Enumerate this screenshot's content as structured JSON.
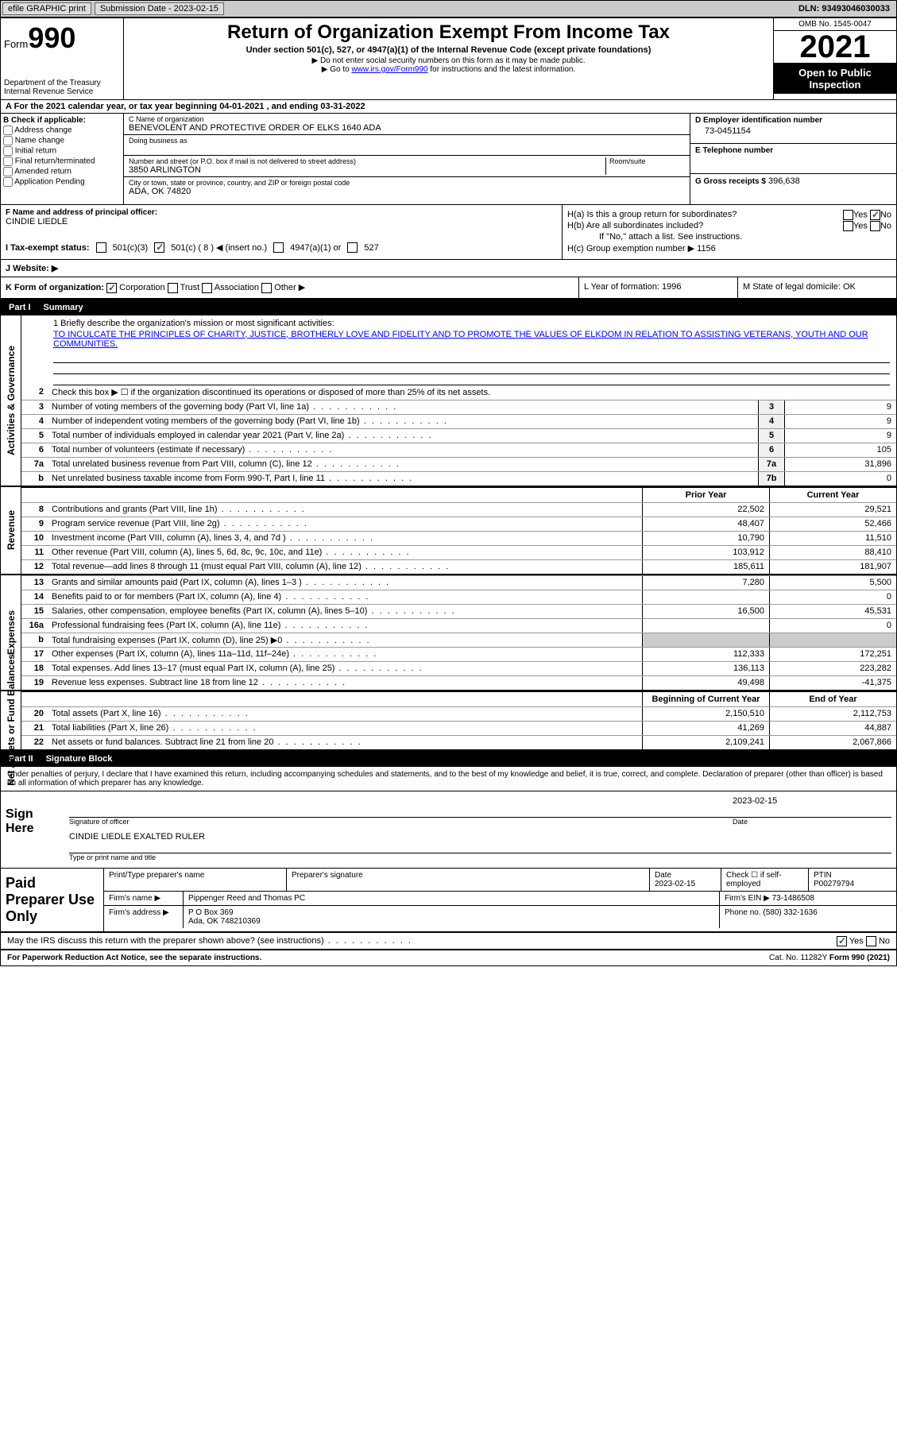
{
  "topbar": {
    "efile": "efile GRAPHIC print",
    "sub_label": "Submission Date - 2023-02-15",
    "dln": "DLN: 93493046030033"
  },
  "header": {
    "form_label": "Form",
    "form_num": "990",
    "dept": "Department of the Treasury Internal Revenue Service",
    "title": "Return of Organization Exempt From Income Tax",
    "subtitle": "Under section 501(c), 527, or 4947(a)(1) of the Internal Revenue Code (except private foundations)",
    "note1": "▶ Do not enter social security numbers on this form as it may be made public.",
    "note2_pre": "▶ Go to ",
    "note2_link": "www.irs.gov/Form990",
    "note2_post": " for instructions and the latest information.",
    "omb": "OMB No. 1545-0047",
    "year": "2021",
    "inspect": "Open to Public Inspection"
  },
  "period": "A For the 2021 calendar year, or tax year beginning 04-01-2021   , and ending 03-31-2022",
  "check_b": {
    "title": "B Check if applicable:",
    "items": [
      "Address change",
      "Name change",
      "Initial return",
      "Final return/terminated",
      "Amended return",
      "Application Pending"
    ]
  },
  "entity": {
    "c_name_lbl": "C Name of organization",
    "c_name": "BENEVOLENT AND PROTECTIVE ORDER OF ELKS 1640 ADA",
    "dba_lbl": "Doing business as",
    "dba": "",
    "street_lbl": "Number and street (or P.O. box if mail is not delivered to street address)",
    "room_lbl": "Room/suite",
    "street": "3850 ARLINGTON",
    "city_lbl": "City or town, state or province, country, and ZIP or foreign postal code",
    "city": "ADA, OK  74820",
    "d_ein_lbl": "D Employer identification number",
    "d_ein": "73-0451154",
    "e_phone_lbl": "E Telephone number",
    "e_phone": "",
    "g_gross_lbl": "G Gross receipts $",
    "g_gross": "396,638"
  },
  "officer": {
    "label": "F  Name and address of principal officer:",
    "name": "CINDIE LIEDLE"
  },
  "h": {
    "a": "H(a)  Is this a group return for subordinates?",
    "b": "H(b)  Are all subordinates included?",
    "note": "If \"No,\" attach a list. See instructions.",
    "c": "H(c)  Group exemption number ▶",
    "c_val": "1156",
    "yes": "Yes",
    "no": "No"
  },
  "tax_status": {
    "label": "I   Tax-exempt status:",
    "o501c3": "501(c)(3)",
    "o501c": "501(c) ( 8 ) ◀ (insert no.)",
    "o4947": "4947(a)(1) or",
    "o527": "527"
  },
  "website": {
    "label": "J   Website: ▶",
    "val": ""
  },
  "korg": {
    "label": "K Form of organization:",
    "corp": "Corporation",
    "trust": "Trust",
    "assoc": "Association",
    "other": "Other ▶",
    "l": "L Year of formation: 1996",
    "m": "M State of legal domicile: OK"
  },
  "part1": {
    "num": "Part I",
    "title": "Summary"
  },
  "mission": {
    "label": "1   Briefly describe the organization's mission or most significant activities:",
    "text": "TO INCULCATE THE PRINCIPLES OF CHARITY, JUSTICE, BROTHERLY LOVE AND FIDELITY AND TO PROMOTE THE VALUES OF ELKDOM IN RELATION TO ASSISTING VETERANS, YOUTH AND OUR COMMUNITIES."
  },
  "line2": "Check this box ▶ ☐  if the organization discontinued its operations or disposed of more than 25% of its net assets.",
  "lines_ag": [
    {
      "n": "3",
      "t": "Number of voting members of the governing body (Part VI, line 1a)",
      "b": "3",
      "v": "9"
    },
    {
      "n": "4",
      "t": "Number of independent voting members of the governing body (Part VI, line 1b)",
      "b": "4",
      "v": "9"
    },
    {
      "n": "5",
      "t": "Total number of individuals employed in calendar year 2021 (Part V, line 2a)",
      "b": "5",
      "v": "9"
    },
    {
      "n": "6",
      "t": "Total number of volunteers (estimate if necessary)",
      "b": "6",
      "v": "105"
    },
    {
      "n": "7a",
      "t": "Total unrelated business revenue from Part VIII, column (C), line 12",
      "b": "7a",
      "v": "31,896"
    },
    {
      "n": "b",
      "t": "Net unrelated business taxable income from Form 990-T, Part I, line 11",
      "b": "7b",
      "v": "0"
    }
  ],
  "col_hdrs": {
    "prior": "Prior Year",
    "current": "Current Year",
    "boy": "Beginning of Current Year",
    "eoy": "End of Year"
  },
  "rev": [
    {
      "n": "8",
      "t": "Contributions and grants (Part VIII, line 1h)",
      "p": "22,502",
      "c": "29,521"
    },
    {
      "n": "9",
      "t": "Program service revenue (Part VIII, line 2g)",
      "p": "48,407",
      "c": "52,466"
    },
    {
      "n": "10",
      "t": "Investment income (Part VIII, column (A), lines 3, 4, and 7d )",
      "p": "10,790",
      "c": "11,510"
    },
    {
      "n": "11",
      "t": "Other revenue (Part VIII, column (A), lines 5, 6d, 8c, 9c, 10c, and 11e)",
      "p": "103,912",
      "c": "88,410"
    },
    {
      "n": "12",
      "t": "Total revenue—add lines 8 through 11 (must equal Part VIII, column (A), line 12)",
      "p": "185,611",
      "c": "181,907"
    }
  ],
  "exp": [
    {
      "n": "13",
      "t": "Grants and similar amounts paid (Part IX, column (A), lines 1–3 )",
      "p": "7,280",
      "c": "5,500"
    },
    {
      "n": "14",
      "t": "Benefits paid to or for members (Part IX, column (A), line 4)",
      "p": "",
      "c": "0"
    },
    {
      "n": "15",
      "t": "Salaries, other compensation, employee benefits (Part IX, column (A), lines 5–10)",
      "p": "16,500",
      "c": "45,531"
    },
    {
      "n": "16a",
      "t": "Professional fundraising fees (Part IX, column (A), line 11e)",
      "p": "",
      "c": "0"
    },
    {
      "n": "b",
      "t": "Total fundraising expenses (Part IX, column (D), line 25) ▶0",
      "p": "grey",
      "c": "grey"
    },
    {
      "n": "17",
      "t": "Other expenses (Part IX, column (A), lines 11a–11d, 11f–24e)",
      "p": "112,333",
      "c": "172,251"
    },
    {
      "n": "18",
      "t": "Total expenses. Add lines 13–17 (must equal Part IX, column (A), line 25)",
      "p": "136,113",
      "c": "223,282"
    },
    {
      "n": "19",
      "t": "Revenue less expenses. Subtract line 18 from line 12",
      "p": "49,498",
      "c": "-41,375"
    }
  ],
  "net": [
    {
      "n": "20",
      "t": "Total assets (Part X, line 16)",
      "p": "2,150,510",
      "c": "2,112,753"
    },
    {
      "n": "21",
      "t": "Total liabilities (Part X, line 26)",
      "p": "41,269",
      "c": "44,887"
    },
    {
      "n": "22",
      "t": "Net assets or fund balances. Subtract line 21 from line 20",
      "p": "2,109,241",
      "c": "2,067,866"
    }
  ],
  "sides": {
    "ag": "Activities & Governance",
    "rev": "Revenue",
    "exp": "Expenses",
    "net": "Net Assets or Fund Balances"
  },
  "part2": {
    "num": "Part II",
    "title": "Signature Block"
  },
  "sig_decl": "Under penalties of perjury, I declare that I have examined this return, including accompanying schedules and statements, and to the best of my knowledge and belief, it is true, correct, and complete. Declaration of preparer (other than officer) is based on all information of which preparer has any knowledge.",
  "sign": {
    "here": "Sign Here",
    "sig_of": "Signature of officer",
    "date": "Date",
    "date_v": "2023-02-15",
    "name": "CINDIE LIEDLE  EXALTED RULER",
    "name_lbl": "Type or print name and title"
  },
  "prep": {
    "label": "Paid Preparer Use Only",
    "h1": "Print/Type preparer's name",
    "h2": "Preparer's signature",
    "h3": "Date",
    "h3v": "2023-02-15",
    "h4": "Check ☐ if self-employed",
    "h5": "PTIN",
    "h5v": "P00279794",
    "firm_lbl": "Firm's name    ▶",
    "firm": "Pippenger Reed and Thomas PC",
    "ein_lbl": "Firm's EIN ▶",
    "ein": "73-1486508",
    "addr_lbl": "Firm's address ▶",
    "addr1": "P O Box 369",
    "addr2": "Ada, OK  748210369",
    "phone_lbl": "Phone no.",
    "phone": "(580) 332-1636"
  },
  "discuss": "May the IRS discuss this return with the preparer shown above? (see instructions)",
  "footer": {
    "pra": "For Paperwork Reduction Act Notice, see the separate instructions.",
    "cat": "Cat. No. 11282Y",
    "form": "Form 990 (2021)"
  }
}
